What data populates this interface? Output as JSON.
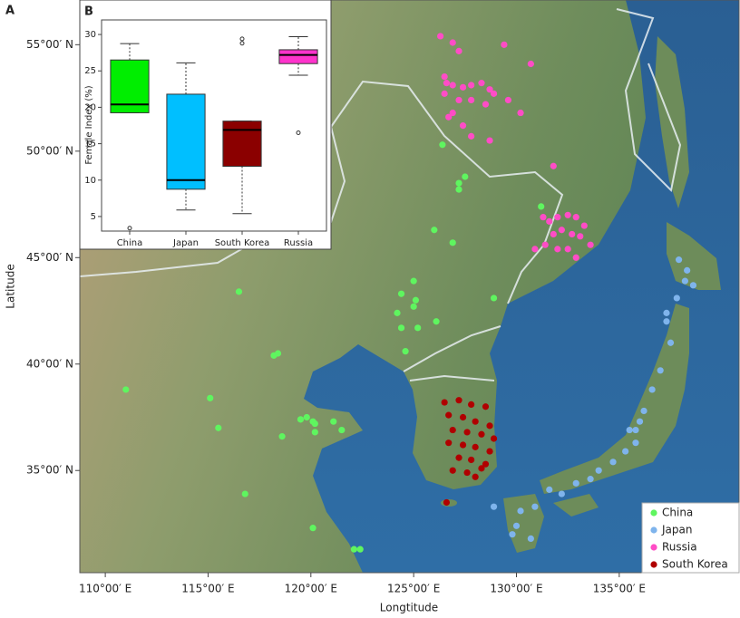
{
  "chart_data": [
    {
      "type": "scatter",
      "panel_label": "A",
      "x_label": "Longtitude",
      "y_label": "Latitude",
      "xlim": [
        108.76,
        140.83
      ],
      "ylim": [
        30.2,
        57.1
      ],
      "xticks": [
        {
          "value": 110,
          "label": "110°00′ E"
        },
        {
          "value": 115,
          "label": "115°00′ E"
        },
        {
          "value": 120,
          "label": "120°00′ E"
        },
        {
          "value": 125,
          "label": "125°00′ E"
        },
        {
          "value": 130,
          "label": "130°00′ E"
        },
        {
          "value": 135,
          "label": "135°00′ E"
        }
      ],
      "yticks": [
        {
          "value": 35,
          "label": "35°00′ N"
        },
        {
          "value": 40,
          "label": "40°00′ N"
        },
        {
          "value": 45,
          "label": "45°00′ N"
        },
        {
          "value": 50,
          "label": "50°00′ N"
        },
        {
          "value": 55,
          "label": "55°00′ N"
        }
      ],
      "legend": "lower right",
      "series": [
        {
          "name": "China",
          "color": "#5ff55f",
          "x": [
            126.4,
            127.5,
            127.2,
            127.2,
            126.0,
            126.9,
            116.5,
            125.0,
            124.4,
            125.1,
            125.0,
            124.2,
            126.1,
            125.2,
            124.4,
            128.9,
            118.4,
            118.2,
            124.6,
            111.0,
            115.1,
            115.5,
            119.5,
            119.8,
            120.1,
            120.2,
            121.1,
            121.5,
            120.2,
            118.6,
            116.8,
            120.1,
            122.1,
            122.4,
            131.2
          ],
          "y": [
            50.3,
            48.8,
            48.5,
            48.2,
            46.3,
            45.7,
            43.4,
            43.9,
            43.3,
            43.0,
            42.7,
            42.4,
            42.0,
            41.7,
            41.7,
            43.1,
            40.5,
            40.4,
            40.6,
            38.8,
            38.4,
            37.0,
            37.4,
            37.5,
            37.3,
            37.2,
            37.3,
            36.9,
            36.8,
            36.6,
            33.9,
            32.3,
            31.3,
            31.3,
            47.4
          ]
        },
        {
          "name": "Japan",
          "color": "#7fb4ec",
          "x": [
            137.9,
            138.3,
            138.6,
            137.8,
            137.3,
            137.5,
            137.0,
            136.6,
            136.2,
            136.0,
            135.5,
            135.8,
            135.3,
            134.7,
            134.0,
            133.6,
            132.9,
            132.2,
            131.6,
            130.9,
            130.2,
            130.0,
            129.8,
            130.7,
            128.9,
            137.3,
            138.2,
            135.8
          ],
          "y": [
            44.9,
            44.4,
            43.7,
            43.1,
            42.0,
            41.0,
            39.7,
            38.8,
            37.8,
            37.3,
            36.9,
            36.3,
            35.9,
            35.4,
            35.0,
            34.6,
            34.4,
            33.9,
            34.1,
            33.3,
            33.1,
            32.4,
            32.0,
            31.8,
            33.3,
            42.4,
            43.9,
            36.9
          ]
        },
        {
          "name": "Russia",
          "color": "#ff4cc6",
          "x": [
            126.3,
            126.9,
            127.2,
            126.5,
            126.6,
            126.9,
            127.4,
            127.8,
            128.3,
            128.7,
            126.5,
            127.2,
            127.8,
            128.5,
            128.9,
            129.6,
            130.2,
            126.9,
            126.7,
            127.4,
            127.8,
            128.7,
            129.4,
            130.7,
            131.8,
            131.3,
            131.6,
            132.0,
            132.5,
            132.9,
            133.3,
            132.2,
            132.7,
            133.1,
            133.6,
            131.4,
            132.0,
            132.5,
            132.9,
            130.9,
            131.8
          ],
          "y": [
            55.4,
            55.1,
            54.7,
            53.5,
            53.2,
            53.1,
            53.0,
            53.1,
            53.2,
            52.9,
            52.7,
            52.4,
            52.4,
            52.2,
            52.7,
            52.4,
            51.8,
            51.8,
            51.6,
            51.2,
            50.7,
            50.5,
            55.0,
            54.1,
            49.3,
            46.9,
            46.7,
            46.9,
            47.0,
            46.9,
            46.5,
            46.3,
            46.1,
            46.0,
            45.6,
            45.6,
            45.4,
            45.4,
            45.0,
            45.4,
            46.1
          ]
        },
        {
          "name": "South Korea",
          "color": "#b00000",
          "x": [
            126.5,
            127.2,
            127.8,
            128.5,
            126.7,
            127.4,
            128.0,
            128.7,
            126.9,
            127.6,
            128.3,
            128.9,
            126.7,
            127.4,
            128.0,
            128.7,
            127.2,
            127.8,
            128.5,
            126.9,
            127.6,
            128.3,
            128.0,
            126.6
          ],
          "y": [
            38.2,
            38.3,
            38.1,
            38.0,
            37.6,
            37.5,
            37.3,
            37.1,
            36.9,
            36.8,
            36.7,
            36.5,
            36.3,
            36.2,
            36.1,
            35.9,
            35.6,
            35.5,
            35.3,
            35.0,
            34.9,
            35.1,
            34.7,
            33.5
          ]
        }
      ]
    },
    {
      "type": "box",
      "panel_label": "B",
      "y_label": "Female Index (%)",
      "categories": [
        "China",
        "Japan",
        "South Korea",
        "Russia"
      ],
      "colors": [
        "#00ee00",
        "#00bfff",
        "#8b0000",
        "#ff33cc"
      ],
      "ylim": [
        3,
        32
      ],
      "yticks": [
        5,
        10,
        15,
        20,
        25,
        30
      ],
      "boxes": [
        {
          "min": 19.25,
          "q1": 19.25,
          "median": 20.4,
          "q3": 26.5,
          "max": 28.75,
          "outliers": [
            3.4
          ]
        },
        {
          "min": 5.9,
          "q1": 8.75,
          "median": 10,
          "q3": 21.8,
          "max": 26.1,
          "outliers": []
        },
        {
          "min": 5.4,
          "q1": 11.9,
          "median": 16.9,
          "q3": 18.1,
          "max": 18.1,
          "outliers": [
            29.4,
            28.8
          ]
        },
        {
          "min": 24.4,
          "q1": 26,
          "median": 27.2,
          "q3": 27.9,
          "max": 29.7,
          "outliers": [
            16.5
          ]
        }
      ]
    }
  ]
}
